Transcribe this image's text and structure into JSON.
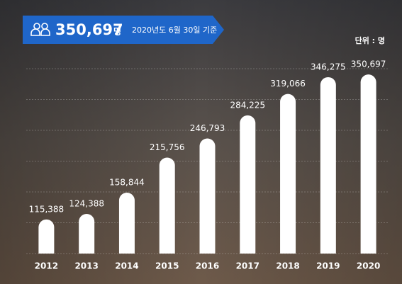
{
  "chart_data": {
    "type": "bar",
    "headline_value": "350,697",
    "headline_unit": "명",
    "subtitle": "2020년도 6월 30일 기준",
    "unit_label": "단위 : 명",
    "categories": [
      "2012",
      "2013",
      "2014",
      "2015",
      "2016",
      "2017",
      "2018",
      "2019",
      "2020"
    ],
    "values": [
      115388,
      124388,
      158844,
      215756,
      246793,
      284225,
      319066,
      346275,
      350697
    ],
    "value_labels": [
      "115,388",
      "124,388",
      "158,844",
      "215,756",
      "246,793",
      "284,225",
      "319,066",
      "346,275",
      "350,697"
    ],
    "color": "#ffffff",
    "ylim": [
      60000,
      360000
    ],
    "yticks": [
      60000,
      110000,
      160000,
      210000,
      260000,
      310000,
      360000
    ],
    "grid": true
  }
}
